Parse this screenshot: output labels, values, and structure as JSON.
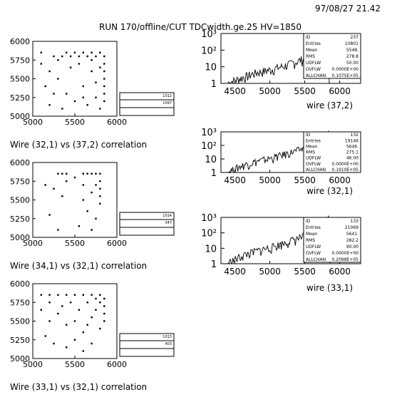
{
  "header": {
    "timestamp": "97/08/27   21.42",
    "title": "RUN 170/offline/CUT TDCwidth.ge.25   HV=1850"
  },
  "chart_data": [
    {
      "type": "scatter",
      "caption": "Wire (32,1) vs (37,2) correlation",
      "xlim": [
        5000,
        6000
      ],
      "ylim": [
        5000,
        6000
      ],
      "x_ticks": [
        "5000",
        "5500",
        "6000"
      ],
      "y_ticks": [
        "5000",
        "5250",
        "5500",
        "5750",
        "6000"
      ],
      "stats_box": {
        "id": "1012",
        "entries": "1097"
      },
      "points": [
        [
          5100,
          5850
        ],
        [
          5250,
          5800
        ],
        [
          5300,
          5750
        ],
        [
          5350,
          5800
        ],
        [
          5400,
          5850
        ],
        [
          5450,
          5800
        ],
        [
          5500,
          5850
        ],
        [
          5550,
          5800
        ],
        [
          5600,
          5850
        ],
        [
          5650,
          5800
        ],
        [
          5700,
          5850
        ],
        [
          5750,
          5800
        ],
        [
          5800,
          5850
        ],
        [
          5850,
          5800
        ],
        [
          5850,
          5700
        ],
        [
          5850,
          5600
        ],
        [
          5850,
          5500
        ],
        [
          5850,
          5400
        ],
        [
          5850,
          5300
        ],
        [
          5850,
          5200
        ],
        [
          5200,
          5600
        ],
        [
          5300,
          5500
        ],
        [
          5400,
          5300
        ],
        [
          5500,
          5200
        ],
        [
          5600,
          5400
        ],
        [
          5700,
          5600
        ],
        [
          5150,
          5400
        ],
        [
          5250,
          5300
        ],
        [
          5350,
          5100
        ],
        [
          5650,
          5150
        ],
        [
          5750,
          5450
        ],
        [
          5800,
          5650
        ],
        [
          5450,
          5650
        ],
        [
          5550,
          5700
        ],
        [
          5700,
          5750
        ],
        [
          5100,
          5700
        ],
        [
          5200,
          5150
        ],
        [
          5600,
          5250
        ],
        [
          5750,
          5250
        ],
        [
          5800,
          5100
        ]
      ]
    },
    {
      "type": "scatter",
      "caption": "Wire (34,1) vs (32,1) correlation",
      "xlim": [
        5000,
        6000
      ],
      "ylim": [
        5000,
        6000
      ],
      "x_ticks": [
        "5000",
        "5500",
        "6000"
      ],
      "y_ticks": [
        "5000",
        "5250",
        "5500",
        "5750",
        "6000"
      ],
      "stats_box": {
        "id": "1014",
        "entries": "347"
      },
      "points": [
        [
          5300,
          5850
        ],
        [
          5350,
          5850
        ],
        [
          5400,
          5850
        ],
        [
          5600,
          5850
        ],
        [
          5650,
          5850
        ],
        [
          5700,
          5850
        ],
        [
          5750,
          5850
        ],
        [
          5800,
          5850
        ],
        [
          5800,
          5750
        ],
        [
          5800,
          5650
        ],
        [
          5800,
          5550
        ],
        [
          5800,
          5450
        ],
        [
          5750,
          5700
        ],
        [
          5700,
          5600
        ],
        [
          5150,
          5700
        ],
        [
          5250,
          5650
        ],
        [
          5600,
          5500
        ],
        [
          5650,
          5350
        ],
        [
          5750,
          5250
        ],
        [
          5200,
          5300
        ],
        [
          5300,
          5100
        ],
        [
          5550,
          5150
        ],
        [
          5700,
          5100
        ],
        [
          5400,
          5750
        ],
        [
          5500,
          5800
        ],
        [
          5600,
          5700
        ],
        [
          5350,
          5550
        ]
      ]
    },
    {
      "type": "scatter",
      "caption": "Wire (33,1) vs (32,1) correlation",
      "xlim": [
        5000,
        6000
      ],
      "ylim": [
        5000,
        6000
      ],
      "x_ticks": [
        "5000",
        "5500",
        "6000"
      ],
      "y_ticks": [
        "5000",
        "5250",
        "5500",
        "5750",
        "6000"
      ],
      "stats_box": {
        "id": "1013",
        "entries": "403"
      },
      "points": [
        [
          5100,
          5850
        ],
        [
          5200,
          5850
        ],
        [
          5300,
          5850
        ],
        [
          5400,
          5850
        ],
        [
          5500,
          5850
        ],
        [
          5600,
          5850
        ],
        [
          5700,
          5850
        ],
        [
          5800,
          5850
        ],
        [
          5850,
          5800
        ],
        [
          5850,
          5700
        ],
        [
          5850,
          5600
        ],
        [
          5850,
          5500
        ],
        [
          5800,
          5750
        ],
        [
          5750,
          5650
        ],
        [
          5700,
          5550
        ],
        [
          5650,
          5450
        ],
        [
          5600,
          5350
        ],
        [
          5500,
          5250
        ],
        [
          5400,
          5150
        ],
        [
          5300,
          5600
        ],
        [
          5200,
          5500
        ],
        [
          5150,
          5300
        ],
        [
          5250,
          5200
        ],
        [
          5350,
          5700
        ],
        [
          5450,
          5750
        ],
        [
          5550,
          5650
        ],
        [
          5650,
          5750
        ],
        [
          5750,
          5800
        ],
        [
          5800,
          5400
        ],
        [
          5700,
          5200
        ],
        [
          5600,
          5100
        ],
        [
          5500,
          5500
        ],
        [
          5400,
          5450
        ],
        [
          5100,
          5650
        ],
        [
          5200,
          5750
        ]
      ]
    },
    {
      "type": "line",
      "caption": "wire (37,2)",
      "xlim": [
        4300,
        6300
      ],
      "ylog": true,
      "ylim_decades": [
        0,
        3
      ],
      "x_ticks": [
        "4500",
        "5000",
        "5500",
        "6000"
      ],
      "y_ticks": [
        "1",
        "10",
        "10²",
        "10³"
      ],
      "stats": [
        {
          "label": "ID",
          "value": "237"
        },
        {
          "label": "Entries",
          "value": "10801"
        },
        {
          "label": "Mean",
          "value": "5548."
        },
        {
          "label": "RMS",
          "value": "278.8"
        },
        {
          "label": "UDFLW",
          "value": "50.00"
        },
        {
          "label": "OVFLW",
          "value": "0.0000E+00"
        },
        {
          "label": "ALLCHAN",
          "value": "0.1075E+05"
        }
      ],
      "curve": [
        [
          4400,
          1
        ],
        [
          4600,
          2
        ],
        [
          4800,
          4
        ],
        [
          5000,
          6
        ],
        [
          5200,
          10
        ],
        [
          5400,
          20
        ],
        [
          5500,
          30
        ],
        [
          5600,
          50
        ],
        [
          5700,
          80
        ],
        [
          5750,
          120
        ],
        [
          5800,
          300
        ],
        [
          5830,
          800
        ],
        [
          5850,
          1
        ],
        [
          6300,
          1
        ]
      ]
    },
    {
      "type": "line",
      "caption": "wire (32,1)",
      "xlim": [
        4300,
        6300
      ],
      "ylog": true,
      "ylim_decades": [
        0,
        3
      ],
      "x_ticks": [
        "4500",
        "5000",
        "5500",
        "6000"
      ],
      "y_ticks": [
        "1",
        "10",
        "10²",
        "10³"
      ],
      "stats": [
        {
          "label": "ID",
          "value": "132"
        },
        {
          "label": "Entries",
          "value": "19146"
        },
        {
          "label": "Mean",
          "value": "5646."
        },
        {
          "label": "RMS",
          "value": "275.1"
        },
        {
          "label": "UDFLW",
          "value": "46.00"
        },
        {
          "label": "OVFLW",
          "value": "0.0000E+00"
        },
        {
          "label": "ALLCHAN",
          "value": "0.1910E+05"
        }
      ],
      "curve": [
        [
          4400,
          1
        ],
        [
          4600,
          3
        ],
        [
          4800,
          6
        ],
        [
          5000,
          10
        ],
        [
          5200,
          20
        ],
        [
          5400,
          40
        ],
        [
          5500,
          60
        ],
        [
          5600,
          100
        ],
        [
          5700,
          150
        ],
        [
          5750,
          250
        ],
        [
          5800,
          600
        ],
        [
          5840,
          1200
        ],
        [
          5860,
          1
        ],
        [
          6300,
          1
        ]
      ]
    },
    {
      "type": "line",
      "caption": "wire (33,1)",
      "xlim": [
        4300,
        6300
      ],
      "ylog": true,
      "ylim_decades": [
        0,
        3
      ],
      "x_ticks": [
        "4500",
        "5000",
        "5500",
        "6000"
      ],
      "y_ticks": [
        "1",
        "10",
        "10²",
        "10³"
      ],
      "stats": [
        {
          "label": "ID",
          "value": "133"
        },
        {
          "label": "Entries",
          "value": "21069"
        },
        {
          "label": "Mean",
          "value": "5641."
        },
        {
          "label": "RMS",
          "value": "282.2"
        },
        {
          "label": "UDFLW",
          "value": "90.00"
        },
        {
          "label": "OVFLW",
          "value": "0.0000E+00"
        },
        {
          "label": "ALLCHAN",
          "value": "0.2098E+05"
        }
      ],
      "curve": [
        [
          4400,
          1
        ],
        [
          4600,
          3
        ],
        [
          4800,
          6
        ],
        [
          5000,
          10
        ],
        [
          5200,
          20
        ],
        [
          5400,
          40
        ],
        [
          5500,
          60
        ],
        [
          5600,
          100
        ],
        [
          5700,
          160
        ],
        [
          5750,
          260
        ],
        [
          5800,
          650
        ],
        [
          5840,
          1300
        ],
        [
          5860,
          1
        ],
        [
          6300,
          1
        ]
      ]
    }
  ]
}
